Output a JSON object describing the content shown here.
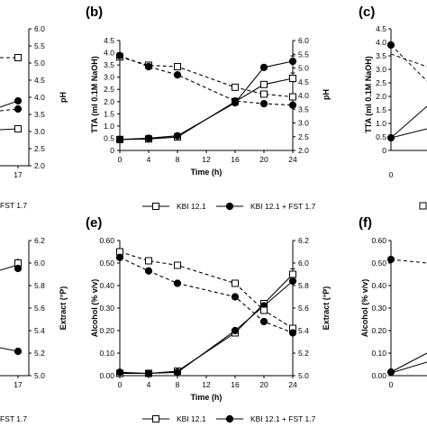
{
  "panels": {
    "left": {
      "right_ticks_top": [
        "6.0",
        "5.5",
        "5.0",
        "4.5",
        "4.0",
        "3.5",
        "3.0",
        "2.5",
        "2.0"
      ],
      "right_label_top": "pH",
      "x_tick_top": "17",
      "legend_top_fragment": "FST 1.7",
      "right_ticks_bottom": [
        "6.2",
        "6.0",
        "5.8",
        "5.6",
        "5.4",
        "5.2",
        "5.0"
      ],
      "right_label_bottom": "Extract (°P)",
      "x_tick_bottom": "17",
      "legend_bottom_fragment": "FST 1.7"
    },
    "b": {
      "label": "(b)"
    },
    "e": {
      "label": "(e)"
    },
    "c": {
      "label": "(c)",
      "yleft_label": "TTA (ml 0.1M NaOH)",
      "y_ticks": [
        "4.5",
        "4.0",
        "3.5",
        "3.0",
        "2.5",
        "2.0",
        "1.5",
        "1.0",
        "0.5",
        "0"
      ],
      "x_tick": "0"
    },
    "f": {
      "label": "(f)",
      "yleft_label": "Alcohol (% v/v)",
      "y_ticks": [
        "0.60",
        "0.50",
        "0.40",
        "0.30",
        "0.20",
        "0.10",
        "0.00"
      ],
      "x_tick": "0"
    }
  },
  "legend_b": {
    "open_label": "KBI 12.1",
    "filled_label": "KBI 12.1 + FST 1.7"
  },
  "legend_e": {
    "open_label": "KBI 12.1",
    "filled_label": "KBI 12.1 + FST 1.7"
  },
  "chart_data": [
    {
      "panel": "b",
      "type": "line",
      "x": [
        0,
        4,
        8,
        16,
        20,
        24
      ],
      "xlabel": "Time (h)",
      "ylabel": "TTA (ml 0.1M NaOH)",
      "ylabel_right": "pH",
      "ylim": [
        0,
        4.5
      ],
      "ylim_right": [
        2.0,
        6.0
      ],
      "x_ticks": [
        "0",
        "4",
        "8",
        "12",
        "16",
        "20",
        "24"
      ],
      "y_ticks": [
        "0",
        "0.5",
        "1.0",
        "1.5",
        "2.0",
        "2.5",
        "3.0",
        "3.5",
        "4.0",
        "4.5"
      ],
      "y_ticks_right": [
        "2.0",
        "2.5",
        "3.0",
        "3.5",
        "4.0",
        "4.5",
        "5.0",
        "5.5",
        "6.0"
      ],
      "series": [
        {
          "name": "KBI 12.1",
          "marker": "open-square",
          "axis": "left",
          "style": "solid",
          "values": [
            0.45,
            0.47,
            0.55,
            2.0,
            2.7,
            2.95
          ]
        },
        {
          "name": "KBI 12.1 + FST 1.7",
          "marker": "filled-circle",
          "axis": "left",
          "style": "solid",
          "values": [
            0.45,
            0.5,
            0.6,
            1.95,
            3.4,
            3.65
          ]
        },
        {
          "name": "KBI 12.1",
          "marker": "open-square",
          "axis": "right",
          "style": "dashed",
          "values": [
            5.4,
            5.1,
            5.05,
            4.3,
            4.05,
            3.95
          ]
        },
        {
          "name": "KBI 12.1 + FST 1.7",
          "marker": "filled-circle",
          "axis": "right",
          "style": "dashed",
          "values": [
            5.45,
            5.05,
            4.75,
            3.8,
            3.7,
            3.65
          ]
        }
      ]
    },
    {
      "panel": "e",
      "type": "line",
      "x": [
        0,
        4,
        8,
        16,
        20,
        24
      ],
      "xlabel": "Time (h)",
      "ylabel": "Alcohol (% v/v)",
      "ylabel_right": "Extract (°P)",
      "ylim": [
        0,
        0.6
      ],
      "ylim_right": [
        5.0,
        6.2
      ],
      "x_ticks": [
        "0",
        "4",
        "8",
        "12",
        "16",
        "20",
        "24"
      ],
      "y_ticks": [
        "0.00",
        "0.10",
        "0.20",
        "0.30",
        "0.40",
        "0.50",
        "0.60"
      ],
      "y_ticks_right": [
        "5.0",
        "5.2",
        "5.4",
        "5.6",
        "5.8",
        "6.0",
        "6.2"
      ],
      "series": [
        {
          "name": "KBI 12.1",
          "marker": "open-square",
          "axis": "left",
          "style": "solid",
          "values": [
            0.01,
            0.01,
            0.02,
            0.19,
            0.32,
            0.45
          ]
        },
        {
          "name": "KBI 12.1 + FST 1.7",
          "marker": "filled-circle",
          "axis": "left",
          "style": "solid",
          "values": [
            0.015,
            0.01,
            0.015,
            0.2,
            0.31,
            0.42
          ]
        },
        {
          "name": "KBI 12.1",
          "marker": "open-square",
          "axis": "right",
          "style": "dashed",
          "values": [
            6.1,
            6.02,
            5.98,
            5.82,
            5.58,
            5.42
          ]
        },
        {
          "name": "KBI 12.1 + FST 1.7",
          "marker": "filled-circle",
          "axis": "right",
          "style": "dashed",
          "values": [
            6.05,
            5.93,
            5.82,
            5.7,
            5.48,
            5.38
          ]
        }
      ]
    }
  ]
}
